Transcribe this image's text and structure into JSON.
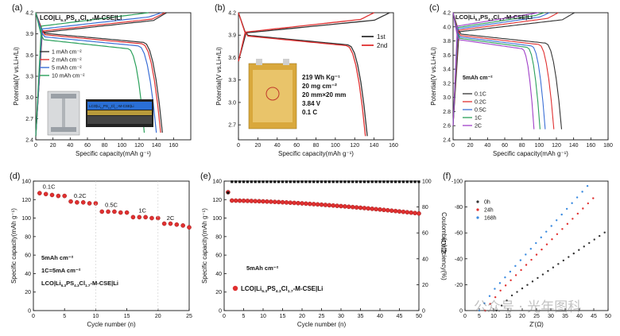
{
  "figure": {
    "watermark": "公众号 · 光年图科"
  },
  "chart_data": [
    {
      "panel": "(a)",
      "type": "line",
      "title": "LCO|Li5.3PS4.3Cl1.7-M-CSE|Li",
      "title_main": "LCO|Li",
      "title_parts": [
        [
          "5.3",
          "sub"
        ],
        [
          "PS",
          "n"
        ],
        [
          "4.3",
          "sub"
        ],
        [
          "Cl",
          "n"
        ],
        [
          "1.7",
          "sub"
        ],
        [
          "-M-CSE|Li",
          "n"
        ]
      ],
      "xlabel": "Specific capacity(mAh g⁻¹)",
      "ylabel": "Potential(V vs.Li+/Li)",
      "xlim": [
        0,
        180
      ],
      "ylim": [
        2.4,
        4.2
      ],
      "xticks": [
        0,
        20,
        40,
        60,
        80,
        100,
        120,
        140,
        160
      ],
      "yticks": [
        2.4,
        2.7,
        3.0,
        3.3,
        3.6,
        3.9,
        4.2
      ],
      "ytick_labels": [
        "2.4",
        "2.7",
        "3.0",
        "3.3",
        "3.6",
        "3.9",
        "4.2"
      ],
      "legend_position": "top-left",
      "series": [
        {
          "name": "1 mAh cm⁻²",
          "color": "#333333",
          "capacity": 147,
          "charge_cap": 152,
          "overpot": 0.02
        },
        {
          "name": "2 mAh cm⁻²",
          "color": "#e03030",
          "capacity": 145,
          "charge_cap": 150,
          "overpot": 0.04
        },
        {
          "name": "5 mAh cm⁻²",
          "color": "#3b6fd6",
          "capacity": 140,
          "charge_cap": 146,
          "overpot": 0.07
        },
        {
          "name": "10 mAh cm⁻²",
          "color": "#2aa05a",
          "capacity": 126,
          "charge_cap": 131,
          "overpot": 0.11
        }
      ],
      "inset_labels": [
        "LCO|Li5.3PS4.3Cl1.7-M-CSE|Li"
      ]
    },
    {
      "panel": "(b)",
      "type": "line",
      "xlabel": "Specific capacity(mAh g⁻¹)",
      "ylabel": "Potential(V vs.Li+/Li)",
      "xlim": [
        0,
        160
      ],
      "ylim": [
        2.5,
        4.2
      ],
      "xticks": [
        0,
        20,
        40,
        60,
        80,
        100,
        120,
        140,
        160
      ],
      "yticks": [
        2.7,
        3.0,
        3.3,
        3.6,
        3.9,
        4.2
      ],
      "ytick_labels": [
        "2.7",
        "3.0",
        "3.3",
        "3.6",
        "3.9",
        "4.2"
      ],
      "legend_position": "top-right",
      "series": [
        {
          "name": "1st",
          "color": "#333333",
          "capacity": 133,
          "charge_cap": 156,
          "overpot": 0.03
        },
        {
          "name": "2nd",
          "color": "#e03030",
          "capacity": 131,
          "charge_cap": 140,
          "overpot": 0.04
        }
      ],
      "annotations": [
        "219 Wh Kg⁻¹",
        "20 mg cm⁻²",
        "20 mm×20 mm",
        "3.84 V",
        "0.1 C"
      ]
    },
    {
      "panel": "(c)",
      "type": "line",
      "title_main": "LCO|Li",
      "title_parts": [
        [
          "5.3",
          "sub"
        ],
        [
          "PS",
          "n"
        ],
        [
          "4.3",
          "sub"
        ],
        [
          "Cl",
          "n"
        ],
        [
          "1.7",
          "sub"
        ],
        [
          "-M-CSE|Li",
          "n"
        ]
      ],
      "xlabel": "Specific capacity(mAh g⁻¹)",
      "ylabel": "Potential(V vs.Li+/Li)",
      "xlim": [
        0,
        180
      ],
      "ylim": [
        2.4,
        4.2
      ],
      "xticks": [
        0,
        20,
        40,
        60,
        80,
        100,
        120,
        140,
        160,
        180
      ],
      "yticks": [
        2.4,
        2.6,
        2.8,
        3.0,
        3.2,
        3.4,
        3.6,
        3.8,
        4.0,
        4.2
      ],
      "ytick_labels": [
        "2.4",
        "2.6",
        "2.8",
        "3.0",
        "3.2",
        "3.4",
        "3.6",
        "3.8",
        "4.0",
        "4.2"
      ],
      "annotation": "5mAh cm⁻²",
      "legend_position": "center-left",
      "series": [
        {
          "name": "0.1C",
          "color": "#333333",
          "capacity": 126,
          "charge_cap": 141,
          "overpot": 0.03
        },
        {
          "name": "0.2C",
          "color": "#e03030",
          "capacity": 117,
          "charge_cap": 122,
          "overpot": 0.05
        },
        {
          "name": "0.5C",
          "color": "#3b6fd6",
          "capacity": 107,
          "charge_cap": 112,
          "overpot": 0.07
        },
        {
          "name": "1C",
          "color": "#2aa05a",
          "capacity": 101,
          "charge_cap": 106,
          "overpot": 0.09
        },
        {
          "name": "2C",
          "color": "#a040c8",
          "capacity": 94,
          "charge_cap": 99,
          "overpot": 0.11
        }
      ]
    },
    {
      "panel": "(d)",
      "type": "scatter",
      "xlabel": "Cycle number (n)",
      "ylabel": "Specific capacity(mAh g⁻¹)",
      "xlim": [
        0,
        25
      ],
      "ylim": [
        0,
        140
      ],
      "xticks": [
        0,
        5,
        10,
        15,
        20,
        25
      ],
      "yticks": [
        0,
        20,
        40,
        60,
        80,
        100,
        120,
        140
      ],
      "annotations": [
        "5mAh cm⁻²",
        "1C=5mA cm⁻²"
      ],
      "title_main": "LCO|Li",
      "title_parts": [
        [
          "5.3",
          "sub"
        ],
        [
          "PS",
          "n"
        ],
        [
          "4.3",
          "sub"
        ],
        [
          "Cl",
          "n"
        ],
        [
          "1.7",
          "sub"
        ],
        [
          "-M-CSE|Li",
          "n"
        ]
      ],
      "rate_labels": [
        {
          "label": "0.1C",
          "x": 2.5,
          "y": 132
        },
        {
          "label": "0.2C",
          "x": 7.5,
          "y": 122
        },
        {
          "label": "0.5C",
          "x": 12.5,
          "y": 112
        },
        {
          "label": "1C",
          "x": 17.5,
          "y": 106
        },
        {
          "label": "2C",
          "x": 22,
          "y": 98
        }
      ],
      "color": "#e03030",
      "x": [
        1,
        2,
        3,
        4,
        5,
        6,
        7,
        8,
        9,
        10,
        11,
        12,
        13,
        14,
        15,
        16,
        17,
        18,
        19,
        20,
        21,
        22,
        23,
        24,
        25
      ],
      "values": [
        127,
        126,
        125,
        124,
        124,
        118,
        117,
        117,
        116,
        116,
        107,
        107,
        107,
        106,
        106,
        101,
        101,
        101,
        100,
        100,
        94,
        94,
        93,
        92,
        90
      ]
    },
    {
      "panel": "(e)",
      "type": "scatter",
      "xlabel": "Cycle number (n)",
      "ylabel": "Specific capacity(mAh g⁻¹)",
      "ylabel2": "Coulombic efficiency(%)",
      "xlim": [
        0,
        50
      ],
      "ylim": [
        0,
        140
      ],
      "ylim2": [
        0,
        100
      ],
      "xticks": [
        0,
        5,
        10,
        15,
        20,
        25,
        30,
        35,
        40,
        45,
        50
      ],
      "yticks": [
        0,
        20,
        40,
        60,
        80,
        100,
        120,
        140
      ],
      "yticks2": [
        0,
        20,
        40,
        60,
        80,
        100
      ],
      "annotation": "5mAh cm⁻²",
      "legend_main": "LCO|Li",
      "legend_parts": [
        [
          "5.3",
          "sub"
        ],
        [
          "PS",
          "n"
        ],
        [
          "4.3",
          "sub"
        ],
        [
          "Cl",
          "n"
        ],
        [
          "1.7",
          "sub"
        ],
        [
          "-M-CSE|Li",
          "n"
        ]
      ],
      "series": [
        {
          "name": "capacity",
          "color": "#e03030",
          "x_start": 1,
          "first": 128,
          "start": 119,
          "end": 105
        },
        {
          "name": "efficiency",
          "color": "#111111",
          "first": 91,
          "value": 99.5
        }
      ]
    },
    {
      "panel": "(f)",
      "type": "scatter",
      "xlabel": "Z'(Ω)",
      "ylabel": "Z''(Ω)",
      "xlim": [
        0,
        50
      ],
      "ylim": [
        0,
        -100
      ],
      "xticks": [
        0,
        5,
        10,
        15,
        20,
        25,
        30,
        35,
        40,
        45,
        50
      ],
      "yticks": [
        0,
        -20,
        -40,
        -60,
        -80,
        -100
      ],
      "legend_position": "top-left",
      "series": [
        {
          "name": "0h",
          "color": "#333333",
          "x0": 11,
          "slope": 1.5
        },
        {
          "name": "24h",
          "color": "#e03030",
          "x0": 7,
          "slope": 2.2
        },
        {
          "name": "168h",
          "color": "#3b8be0",
          "x0": 5,
          "slope": 2.45
        }
      ]
    }
  ]
}
